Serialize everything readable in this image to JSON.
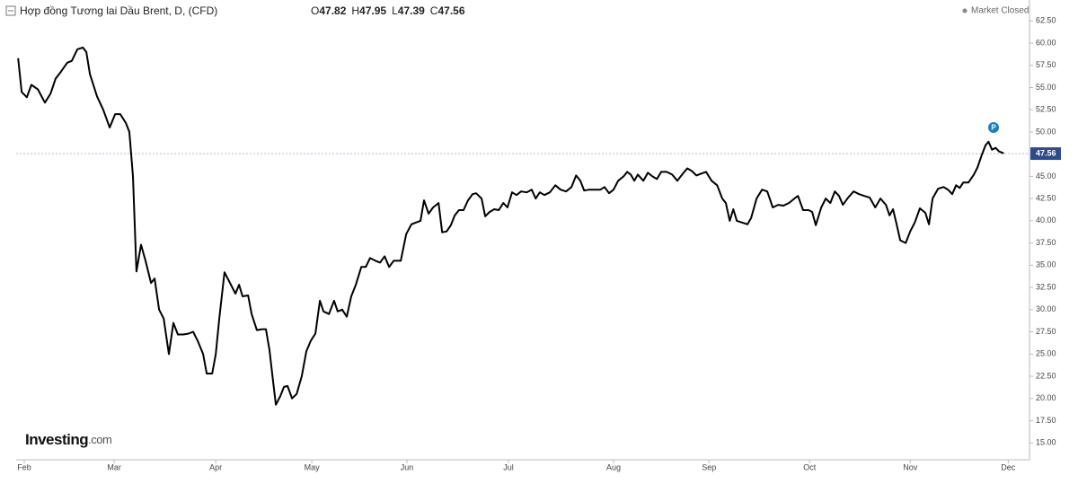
{
  "chart_data": {
    "type": "line",
    "title": "Hợp đồng Tương lai Dầu Brent, D, (CFD)",
    "ohlc": [
      {
        "label": "O",
        "value": 47.82
      },
      {
        "label": "H",
        "value": 47.95
      },
      {
        "label": "L",
        "value": 47.39
      },
      {
        "label": "C",
        "value": 47.56
      }
    ],
    "status": "Market Closed",
    "brand": "Investing",
    "brand_suffix": ".com",
    "badge": "P",
    "last_price": 47.56,
    "color": "#000000",
    "last_price_color": "#2f4b8c",
    "xlim": [
      -2.5,
      310.5
    ],
    "ylim": [
      13.1,
      64.85
    ],
    "xticks": [
      {
        "value": 0,
        "label": "Feb"
      },
      {
        "value": 27.8,
        "label": "Mar"
      },
      {
        "value": 59.2,
        "label": "Apr"
      },
      {
        "value": 88.9,
        "label": "May"
      },
      {
        "value": 118.3,
        "label": "Jun"
      },
      {
        "value": 149.7,
        "label": "Jul"
      },
      {
        "value": 182.2,
        "label": "Aug"
      },
      {
        "value": 211.7,
        "label": "Sep"
      },
      {
        "value": 242.8,
        "label": "Oct"
      },
      {
        "value": 273.9,
        "label": "Nov"
      },
      {
        "value": 304.2,
        "label": "Dec"
      }
    ],
    "yticks": [
      {
        "value": 15,
        "label": "15.00"
      },
      {
        "value": 17.5,
        "label": "17.50"
      },
      {
        "value": 20,
        "label": "20.00"
      },
      {
        "value": 22.5,
        "label": "22.50"
      },
      {
        "value": 25,
        "label": "25.00"
      },
      {
        "value": 27.5,
        "label": "27.50"
      },
      {
        "value": 30,
        "label": "30.00"
      },
      {
        "value": 32.5,
        "label": "32.50"
      },
      {
        "value": 35,
        "label": "35.00"
      },
      {
        "value": 37.5,
        "label": "37.50"
      },
      {
        "value": 40,
        "label": "40.00"
      },
      {
        "value": 42.5,
        "label": "42.50"
      },
      {
        "value": 45,
        "label": "45.00"
      },
      {
        "value": 50,
        "label": "50.00"
      },
      {
        "value": 52.5,
        "label": "52.50"
      },
      {
        "value": 55,
        "label": "55.00"
      },
      {
        "value": 57.5,
        "label": "57.50"
      },
      {
        "value": 60,
        "label": "60.00"
      },
      {
        "value": 62.5,
        "label": "62.50"
      }
    ],
    "x": [
      -1.9,
      -0.8,
      0.8,
      2.2,
      4.2,
      6.4,
      8.1,
      9.7,
      11.4,
      13.3,
      14.7,
      16.4,
      18.1,
      19.2,
      20.3,
      22.5,
      24.4,
      26.4,
      28.1,
      29.7,
      31.4,
      32.5,
      33.6,
      34.7,
      36.1,
      37.5,
      39.2,
      40.3,
      41.7,
      43.1,
      44.7,
      46.1,
      47.5,
      49.2,
      50.8,
      52.2,
      53.6,
      55.3,
      56.4,
      58.1,
      59.2,
      60.3,
      61.9,
      63.6,
      65.3,
      66.4,
      67.5,
      69.2,
      70.3,
      71.9,
      73.6,
      74.7,
      75.8,
      76.9,
      77.8,
      79.2,
      80.3,
      81.4,
      82.8,
      84.2,
      85.8,
      87.2,
      88.6,
      90,
      91.4,
      92.5,
      94.2,
      95.8,
      96.9,
      98.3,
      99.7,
      101.1,
      102.5,
      104.2,
      105.6,
      106.9,
      108.6,
      110,
      111.4,
      112.8,
      114.2,
      116.4,
      118.1,
      119.7,
      121.1,
      122.5,
      123.6,
      125,
      126.4,
      128.1,
      129.2,
      130.6,
      131.9,
      133.1,
      134.4,
      135.8,
      137.2,
      138.6,
      139.7,
      141.4,
      142.5,
      143.9,
      145.3,
      146.7,
      148.1,
      149.4,
      150.8,
      152.2,
      153.6,
      155.3,
      156.9,
      158.1,
      159.4,
      160.8,
      162.5,
      164.2,
      165.8,
      167.5,
      169.2,
      170.6,
      171.9,
      173.1,
      174.7,
      176.4,
      178.1,
      179.4,
      180.8,
      182.2,
      183.6,
      185.3,
      186.4,
      187.5,
      188.6,
      189.7,
      191.4,
      192.8,
      194.2,
      195.6,
      196.9,
      198.6,
      200.3,
      201.9,
      203.6,
      205,
      206.4,
      207.8,
      209.2,
      210.8,
      212.5,
      214.2,
      215.8,
      216.9,
      218.1,
      219.2,
      220.3,
      221.9,
      223.6,
      224.7,
      226.4,
      228.1,
      229.7,
      231.4,
      233.1,
      234.7,
      236.4,
      238.1,
      239.2,
      240.8,
      242.5,
      243.6,
      244.7,
      246.4,
      247.8,
      249.2,
      250.6,
      251.9,
      253.1,
      254.7,
      256.4,
      258.1,
      259.7,
      261.4,
      263.1,
      264.7,
      266.4,
      267.5,
      268.6,
      269.7,
      270.8,
      272.5,
      273.9,
      275.3,
      276.9,
      278.6,
      279.7,
      280.8,
      282.5,
      284.2,
      285.6,
      286.9,
      288.1,
      289.2,
      290.3,
      291.9,
      293.6,
      294.7,
      296.1,
      297.2,
      298.1,
      299.2,
      300.3,
      301.4,
      302.8
    ],
    "values": [
      58.3,
      54.5,
      53.9,
      55.3,
      54.8,
      53.3,
      54.3,
      56,
      56.8,
      57.8,
      58,
      59.3,
      59.5,
      59,
      56.5,
      54,
      52.5,
      50.5,
      52,
      52,
      51,
      50,
      45,
      34.3,
      37.3,
      35.5,
      33,
      33.5,
      30,
      29,
      25,
      28.5,
      27.2,
      27.2,
      27.3,
      27.5,
      26.5,
      25,
      22.8,
      22.8,
      25,
      29,
      34.2,
      33,
      31.8,
      32.8,
      31.5,
      31.6,
      29.5,
      27.7,
      27.8,
      27.8,
      25.5,
      22,
      19.3,
      20.3,
      21.3,
      21.4,
      20,
      20.5,
      22.5,
      25.3,
      26.5,
      27.3,
      31,
      29.8,
      29.5,
      31,
      29.8,
      30,
      29.2,
      31.5,
      32.8,
      34.8,
      34.8,
      35.8,
      35.5,
      35.3,
      36,
      34.8,
      35.5,
      35.5,
      38.5,
      39.6,
      39.8,
      40,
      42.3,
      40.8,
      41.5,
      42,
      38.7,
      38.8,
      39.5,
      40.6,
      41.2,
      41.2,
      42.3,
      43,
      43.1,
      42.5,
      40.5,
      41,
      41.3,
      41.2,
      42,
      41.5,
      43.2,
      42.9,
      43.3,
      43.2,
      43.5,
      42.5,
      43.2,
      42.9,
      43.2,
      44,
      43.5,
      43.3,
      43.8,
      45.1,
      44.5,
      43.4,
      43.5,
      43.5,
      43.5,
      43.8,
      43.1,
      43.5,
      44.5,
      45,
      45.5,
      45.2,
      44.5,
      45.2,
      44.5,
      45.4,
      45,
      44.7,
      45.5,
      45.5,
      45.2,
      44.5,
      45.3,
      45.9,
      45.6,
      45.1,
      45.3,
      45.5,
      44.5,
      44,
      42.5,
      42,
      40,
      41.3,
      40,
      39.8,
      39.6,
      40.3,
      42.5,
      43.5,
      43.3,
      41.5,
      41.8,
      41.7,
      42,
      42.5,
      42.8,
      41.2,
      41.2,
      41,
      39.5,
      41.5,
      42.5,
      42,
      43.3,
      42.8,
      41.8,
      42.6,
      43.3,
      43,
      42.8,
      42.6,
      41.5,
      42.5,
      41.8,
      40.6,
      41.3,
      39.6,
      37.8,
      37.5,
      38.8,
      39.8,
      41.4,
      40.9,
      39.6,
      42.5,
      43.6,
      43.8,
      43.5,
      43,
      44,
      43.7,
      44.3,
      44.3,
      45.2,
      46,
      47.5,
      48.5,
      48.9,
      48,
      48.2,
      47.8,
      47.6
    ]
  }
}
